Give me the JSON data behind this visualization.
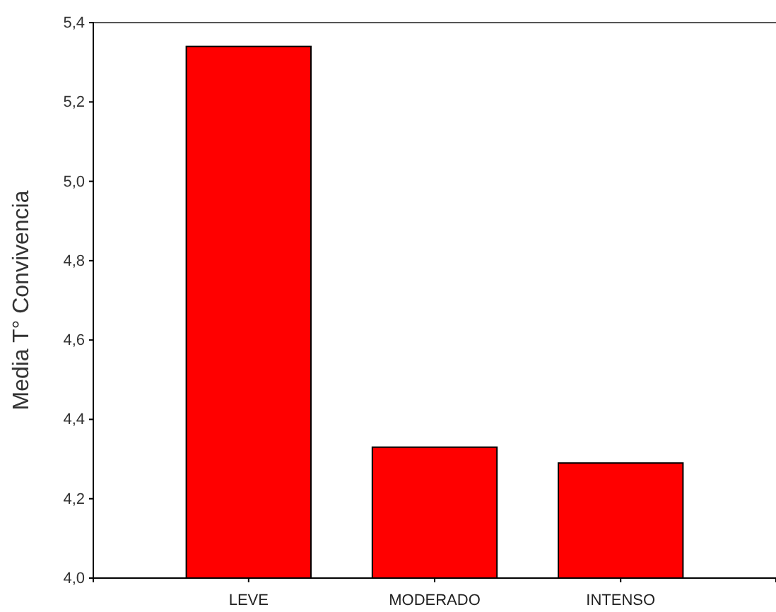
{
  "chart_data": {
    "type": "bar",
    "ylabel": "Media T° Convivencia",
    "categories": [
      "LEVE",
      "MODERADO",
      "INTENSO"
    ],
    "values": [
      5.34,
      4.33,
      4.29
    ],
    "color": "#ff0000",
    "ylim": [
      4.0,
      5.4
    ],
    "yticks": [
      {
        "value": 4.0,
        "label": "4,0"
      },
      {
        "value": 4.2,
        "label": "4,2"
      },
      {
        "value": 4.4,
        "label": "4,4"
      },
      {
        "value": 4.6,
        "label": "4,6"
      },
      {
        "value": 4.8,
        "label": "4,8"
      },
      {
        "value": 5.0,
        "label": "5,0"
      },
      {
        "value": 5.2,
        "label": "5,2"
      },
      {
        "value": 5.4,
        "label": "5,4"
      }
    ]
  }
}
